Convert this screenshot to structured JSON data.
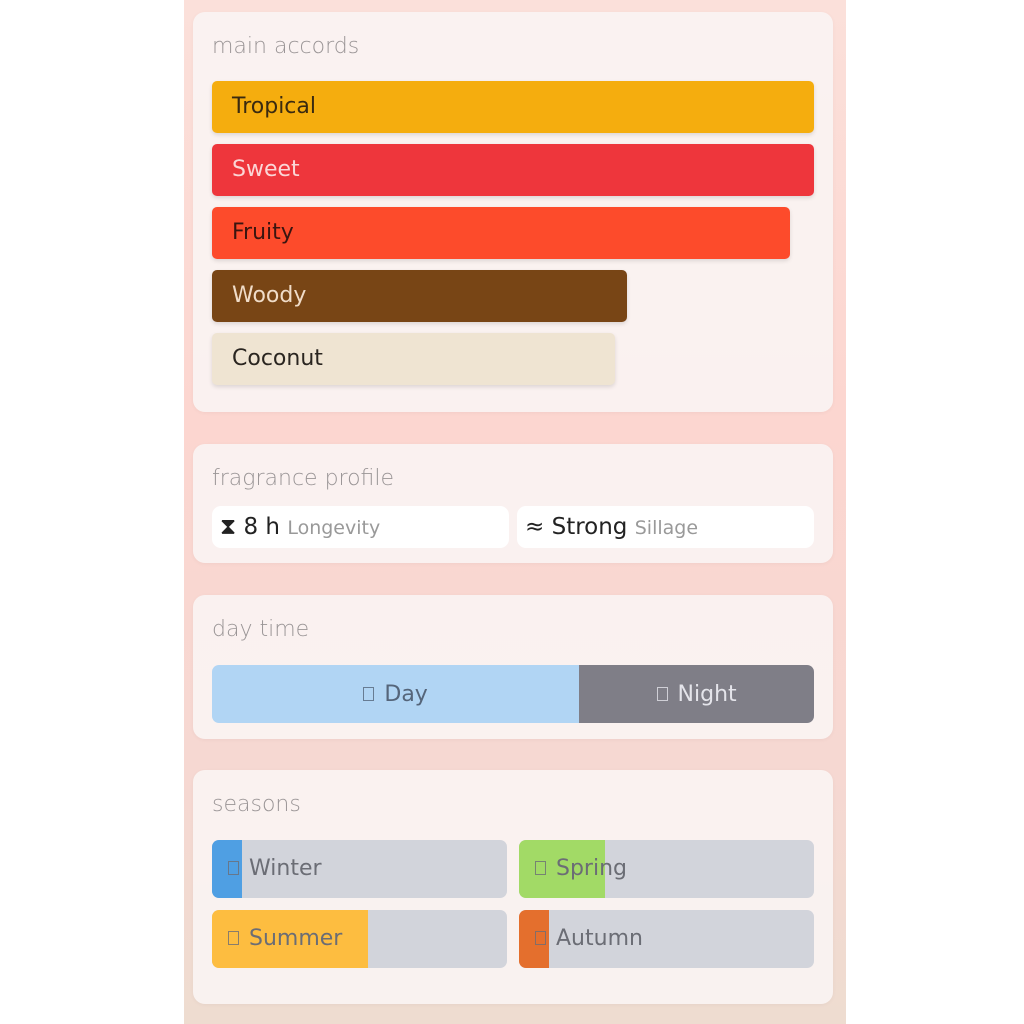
{
  "main_accords": {
    "title": "main accords",
    "items": [
      {
        "label": "Tropical",
        "strength": 100,
        "color": "#f5ad0e",
        "text_color": "#3a2a10"
      },
      {
        "label": "Sweet",
        "strength": 100,
        "color": "#ee363c",
        "text_color": "#fbd6d6"
      },
      {
        "label": "Fruity",
        "strength": 96,
        "color": "#fd4b2b",
        "text_color": "#3a1510"
      },
      {
        "label": "Woody",
        "strength": 69,
        "color": "#784515",
        "text_color": "#f0dcc8"
      },
      {
        "label": "Coconut",
        "strength": 67,
        "color": "#efe4d2",
        "text_color": "#2a2520"
      }
    ]
  },
  "fragrance_profile": {
    "title": "fragrance profile",
    "longevity": {
      "icon": "hourglass-icon",
      "value": "8 h",
      "label": "Longevity"
    },
    "sillage": {
      "icon": "waves-icon",
      "value": "Strong",
      "label": "Sillage"
    }
  },
  "day_time": {
    "title": "day time",
    "day": {
      "label": "Day",
      "percent": 61,
      "color": "#b1d5f4"
    },
    "night": {
      "label": "Night",
      "percent": 39,
      "color": "#7f7e87"
    }
  },
  "seasons": {
    "title": "seasons",
    "items": [
      {
        "label": "Winter",
        "percent": 10,
        "color": "#4f9fe3"
      },
      {
        "label": "Spring",
        "percent": 29,
        "color": "#a2da66"
      },
      {
        "label": "Summer",
        "percent": 53,
        "color": "#fdbd40"
      },
      {
        "label": "Autumn",
        "percent": 10,
        "color": "#e46f2d"
      }
    ]
  }
}
